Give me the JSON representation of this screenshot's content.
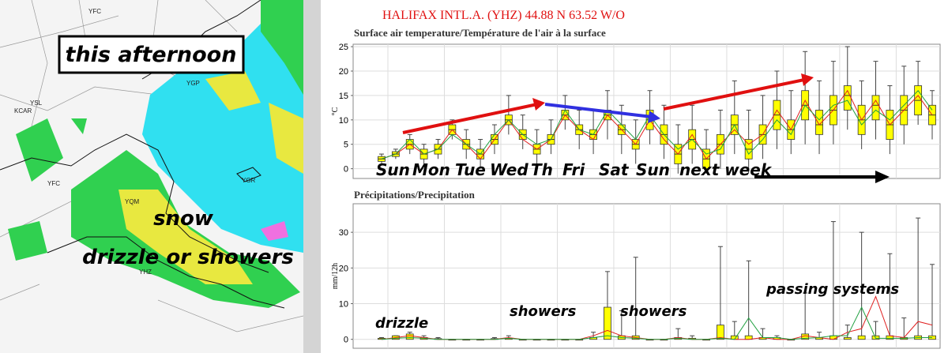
{
  "map": {
    "caption": "this afternoon",
    "labels": [
      "snow",
      "drizzle or showers"
    ],
    "stations": [
      "YFC",
      "YSL",
      "KCAR",
      "YGP",
      "YFC",
      "YQM",
      "YGR",
      "YHZ"
    ]
  },
  "header": "HALIFAX INTL.A. (YHZ) 44.88 N  63.52 W/O",
  "chart_data": [
    {
      "type": "box",
      "title": "Surface air temperature/Température de l'air à la surface",
      "ylabel": "°C",
      "ylim": [
        -2,
        25.5
      ],
      "yticks": [
        0,
        5,
        10,
        15,
        20,
        25
      ],
      "grid": true,
      "box_color": "#ffff00",
      "low": [
        1,
        2,
        3,
        1,
        2,
        6,
        2,
        0,
        3,
        7,
        4,
        1,
        3,
        8,
        4,
        3,
        6,
        3,
        1,
        5,
        2,
        -1,
        1,
        -1,
        0,
        3,
        -1,
        2,
        4,
        3,
        5,
        3,
        5,
        8,
        4,
        6,
        3,
        5,
        9,
        6
      ],
      "q1": [
        1.5,
        2.5,
        4,
        2,
        3,
        7,
        4,
        2,
        5,
        9,
        6,
        3,
        5,
        10,
        7,
        6,
        10,
        7,
        4,
        8,
        5,
        1,
        4,
        0,
        3,
        7,
        2,
        5,
        8,
        6,
        10,
        7,
        9,
        12,
        7,
        10,
        6,
        9,
        11,
        9
      ],
      "median": [
        2,
        3,
        5,
        3,
        4,
        8,
        5,
        3,
        6,
        10,
        7,
        4,
        6,
        11,
        8,
        7,
        11,
        8,
        5,
        10,
        7,
        3,
        6,
        2,
        5,
        9,
        4,
        7,
        11,
        8,
        13,
        9,
        12,
        15,
        10,
        13,
        9,
        12,
        14,
        11
      ],
      "q3": [
        2.5,
        3.5,
        6,
        4,
        5,
        9,
        6,
        4,
        7,
        11,
        8,
        5,
        7,
        12,
        9,
        8,
        12,
        9,
        6,
        12,
        9,
        5,
        8,
        4,
        7,
        11,
        6,
        9,
        14,
        10,
        16,
        12,
        15,
        17,
        13,
        15,
        12,
        15,
        17,
        13
      ],
      "high": [
        3,
        4,
        7,
        5,
        6,
        10,
        8,
        6,
        9,
        15,
        11,
        8,
        10,
        15,
        12,
        12,
        16,
        13,
        10,
        16,
        13,
        9,
        13,
        8,
        12,
        18,
        12,
        15,
        20,
        16,
        24,
        18,
        22,
        25,
        18,
        22,
        17,
        21,
        22,
        16
      ],
      "lines": [
        {
          "color": "#e02020",
          "values": [
            2,
            3,
            5,
            3,
            4,
            8,
            5,
            2,
            6,
            10,
            6,
            4,
            6,
            11,
            8,
            6,
            11,
            8,
            5,
            10,
            6,
            3,
            7,
            2,
            5,
            8,
            5,
            7,
            12,
            8,
            14,
            9,
            12,
            16,
            10,
            14,
            9,
            12,
            15,
            11
          ]
        },
        {
          "color": "#20a040",
          "values": [
            2,
            3,
            6,
            3,
            4,
            7,
            5,
            3,
            7,
            10,
            7,
            5,
            6,
            12,
            8,
            7,
            12,
            9,
            6,
            11,
            7,
            4,
            6,
            3,
            4,
            9,
            3,
            6,
            10,
            7,
            13,
            10,
            13,
            14,
            9,
            12,
            10,
            13,
            16,
            12
          ]
        }
      ],
      "annotations": [
        "Sun",
        "Mon",
        "Tue",
        "Wed",
        "Th",
        "Fri",
        "Sat",
        "Sun",
        "next week"
      ]
    },
    {
      "type": "box",
      "title": "Précipitations/Precipitation",
      "ylabel": "mm/12h",
      "ylim": [
        -2.5,
        38
      ],
      "yticks": [
        0,
        10,
        20,
        30
      ],
      "grid": true,
      "box_color": "#ffff00",
      "q3": [
        0.3,
        1,
        1.5,
        0.5,
        0.2,
        0,
        0,
        0,
        0.2,
        0.3,
        0,
        0,
        0,
        0,
        0,
        0.5,
        9,
        1,
        1,
        0,
        0,
        0.5,
        0.3,
        0,
        4,
        1,
        1,
        0.5,
        0.5,
        0,
        1.5,
        0.5,
        1,
        0.5,
        1,
        1,
        1,
        0.5,
        1,
        1
      ],
      "high": [
        0.5,
        1,
        2,
        1,
        0.5,
        0,
        0,
        0,
        0.5,
        1,
        0,
        0,
        0,
        0,
        0,
        2,
        19,
        8,
        23,
        0,
        0,
        3,
        1,
        0,
        26,
        5,
        22,
        3,
        1,
        0,
        13,
        2,
        33,
        4,
        30,
        5,
        24,
        6,
        34,
        21
      ],
      "lines": [
        {
          "color": "#e02020",
          "values": [
            0,
            0.5,
            1,
            0.5,
            0,
            0,
            0,
            0,
            0,
            0.5,
            0,
            0,
            0,
            0,
            0,
            1,
            2.5,
            1,
            0.5,
            0,
            0,
            0.5,
            0,
            0,
            0.5,
            0,
            0,
            0.5,
            0,
            0,
            1,
            0.5,
            0,
            2,
            3,
            12,
            1,
            0.5,
            5,
            4
          ]
        },
        {
          "color": "#20a040",
          "values": [
            0,
            0.3,
            0.5,
            0.3,
            0,
            0,
            0,
            0,
            0,
            0.3,
            0,
            0,
            0,
            0,
            0,
            0.5,
            1,
            0.5,
            0.3,
            0,
            0,
            0.3,
            0,
            0,
            0.3,
            0,
            6,
            0.5,
            0.5,
            0,
            0.3,
            0.5,
            1,
            1,
            9,
            0.3,
            0.3,
            0.3,
            0.5,
            0.5
          ]
        }
      ],
      "annotations": [
        "drizzle",
        "showers",
        "showers",
        "passing systems"
      ]
    }
  ]
}
